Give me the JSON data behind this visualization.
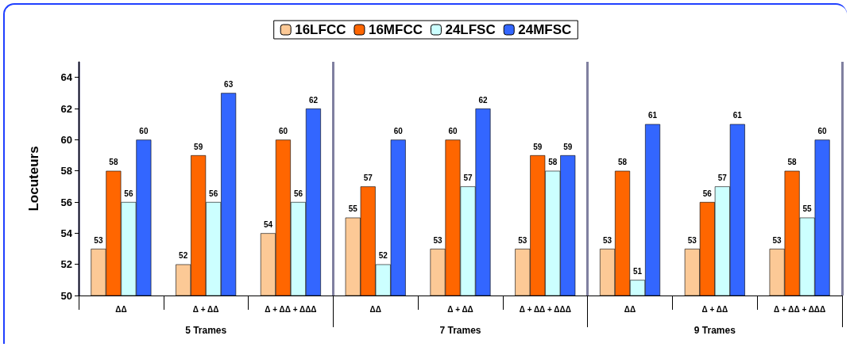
{
  "chart_data": {
    "type": "bar",
    "ylabel": "Locuteurs",
    "categories": [
      "ΔΔ",
      "Δ + ΔΔ",
      "Δ + ΔΔ + ΔΔΔ",
      "ΔΔ",
      "Δ + ΔΔ",
      "Δ + ΔΔ + ΔΔΔ",
      "ΔΔ",
      "Δ + ΔΔ",
      "Δ + ΔΔ + ΔΔΔ"
    ],
    "series": [
      {
        "name": "16LFCC",
        "color": "#fcc996",
        "values": [
          53,
          52,
          54,
          55,
          53,
          53,
          53,
          53,
          53
        ]
      },
      {
        "name": "16MFCC",
        "color": "#ff6600",
        "values": [
          58,
          59,
          60,
          57,
          60,
          59,
          58,
          56,
          58
        ]
      },
      {
        "name": "24LFSC",
        "color": "#ccffff",
        "values": [
          56,
          56,
          56,
          52,
          57,
          58,
          51,
          57,
          55
        ]
      },
      {
        "name": "24MFSC",
        "color": "#3366ff",
        "values": [
          60,
          63,
          62,
          60,
          62,
          59,
          61,
          61,
          60
        ]
      }
    ],
    "annotations": [
      "5 Trames",
      "7 Trames",
      "9 Trames"
    ],
    "ylim": [
      50,
      65
    ],
    "yticks": [
      50,
      52,
      54,
      56,
      58,
      60,
      62,
      64
    ],
    "data_labels": true,
    "legend": "top",
    "grid": false
  }
}
